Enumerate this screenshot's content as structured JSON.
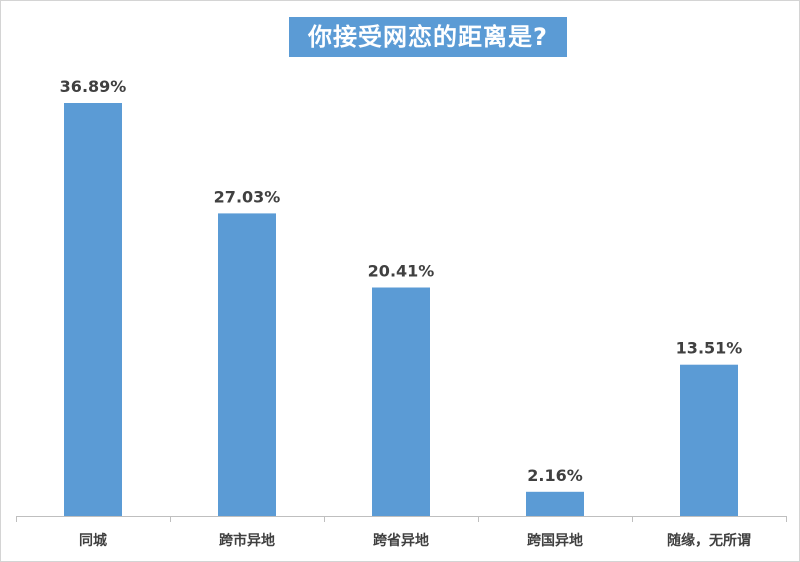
{
  "chart_data": {
    "type": "bar",
    "title": "你接受网恋的距离是?",
    "categories": [
      "同城",
      "跨市异地",
      "跨省异地",
      "跨国异地",
      "随缘，无所谓"
    ],
    "values": [
      36.89,
      27.03,
      20.41,
      2.16,
      13.51
    ],
    "value_labels": [
      "36.89%",
      "27.03%",
      "20.41%",
      "2.16%",
      "13.51%"
    ],
    "unit": "%",
    "ylim": [
      0,
      36.89
    ],
    "grid": false,
    "legend": "none",
    "colors": {
      "bar": "#5b9bd5",
      "title_bg": "#5b9bd5",
      "title_text": "#ffffff",
      "label_text": "#404040",
      "axis": "#bfbfbf"
    }
  }
}
